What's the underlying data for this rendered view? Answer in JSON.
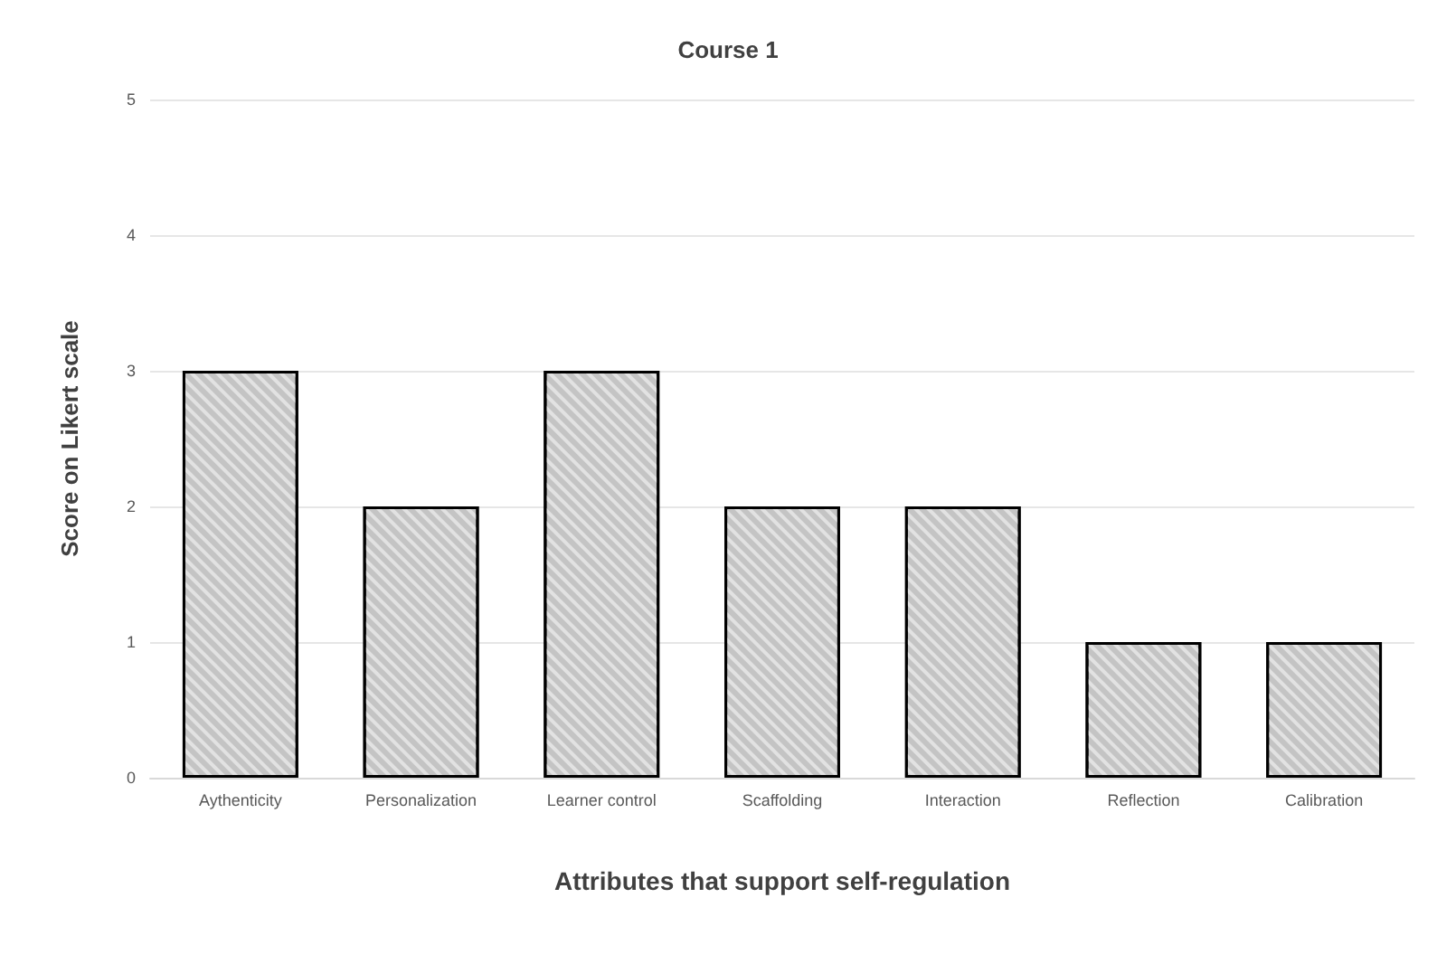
{
  "chart_data": {
    "type": "bar",
    "title": "Course 1",
    "xlabel": "Attributes that support self-regulation",
    "ylabel": "Score on Likert scale",
    "categories": [
      "Aythenticity",
      "Personalization",
      "Learner control",
      "Scaffolding",
      "Interaction",
      "Reflection",
      "Calibration"
    ],
    "values": [
      3,
      2,
      3,
      2,
      2,
      1,
      1
    ],
    "color": "#c4c4c4",
    "ylim": [
      0,
      5
    ],
    "yticks": [
      0,
      1,
      2,
      3,
      4,
      5
    ],
    "grid": "y"
  }
}
